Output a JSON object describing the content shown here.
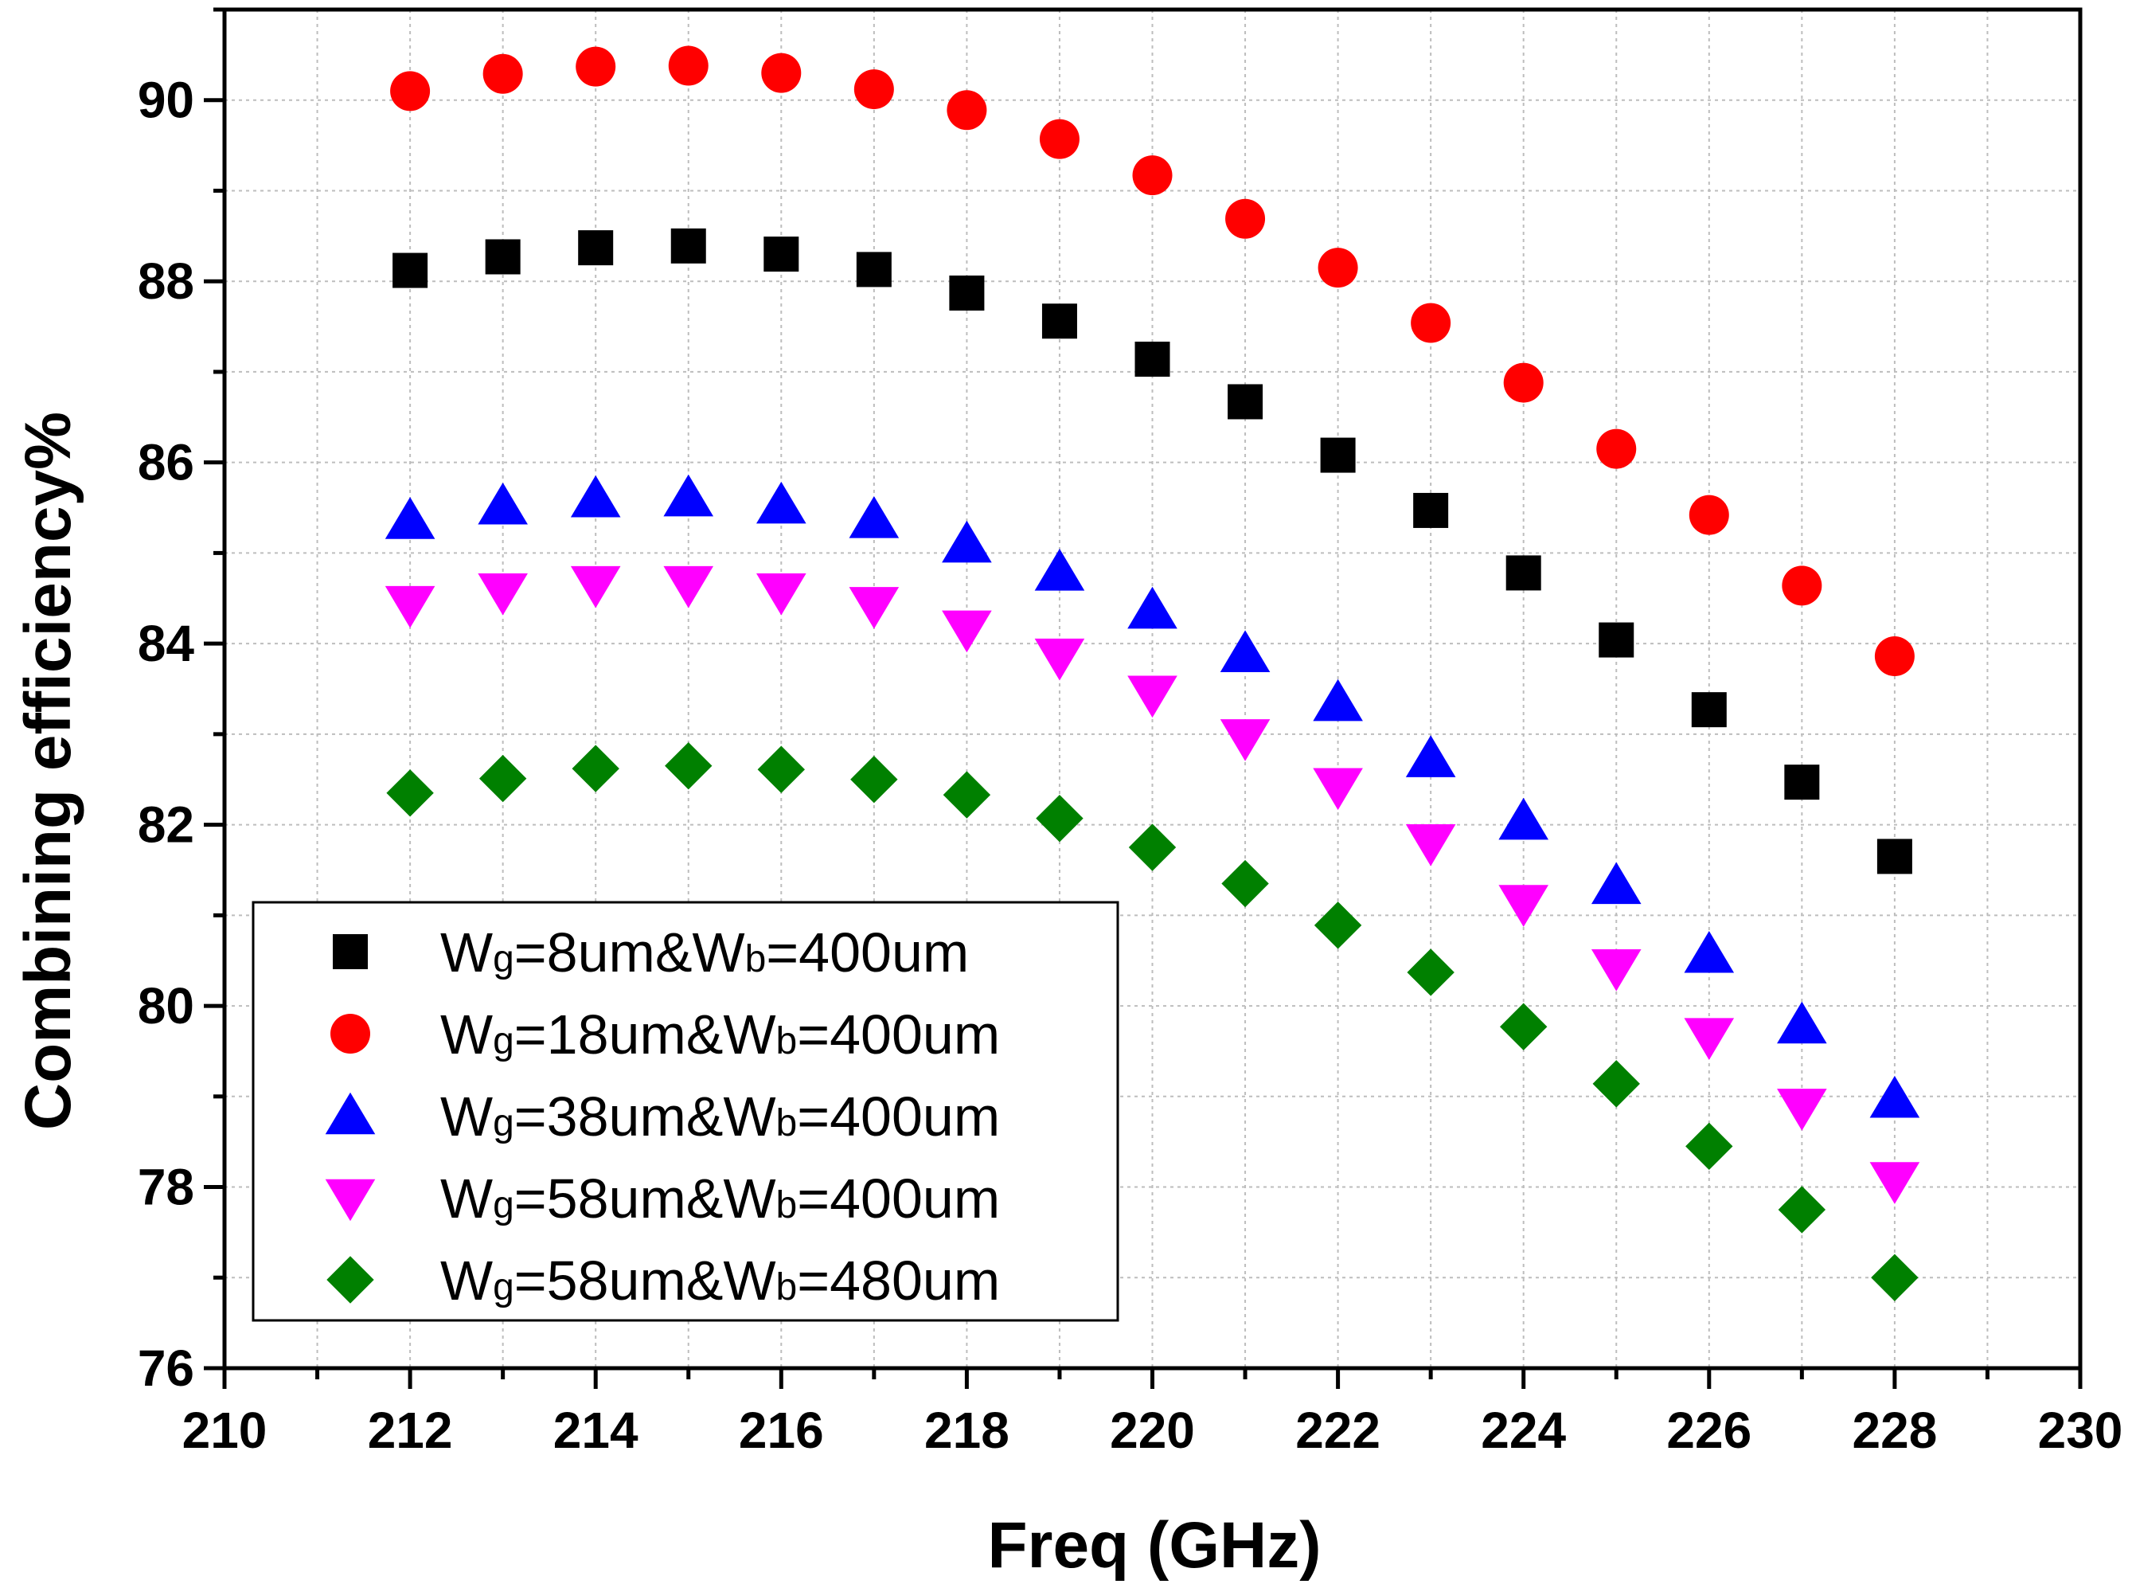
{
  "chart_data": {
    "type": "scatter",
    "xlabel": "Freq (GHz)",
    "ylabel": "Combining efficiency%",
    "xlim": [
      210,
      230
    ],
    "ylim": [
      76,
      91
    ],
    "xticks": [
      210,
      212,
      214,
      216,
      218,
      220,
      222,
      224,
      226,
      228,
      230
    ],
    "yticks": [
      76,
      78,
      80,
      82,
      84,
      86,
      88,
      90
    ],
    "grid": true,
    "legend_position": "bottom-left",
    "x": [
      212,
      213,
      214,
      215,
      216,
      217,
      218,
      219,
      220,
      221,
      222,
      223,
      224,
      225,
      226,
      227,
      228
    ],
    "series": [
      {
        "label": {
          "a": "W",
          "sub1": "g",
          "b": "=8um&W",
          "sub2": "b",
          "c": "=400um"
        },
        "marker": "square",
        "color": "#000000",
        "values": [
          88.12,
          88.27,
          88.37,
          88.39,
          88.3,
          88.13,
          87.87,
          87.56,
          87.14,
          86.67,
          86.08,
          85.47,
          84.78,
          84.04,
          83.27,
          82.47,
          81.65
        ]
      },
      {
        "label": {
          "a": "W",
          "sub1": "g",
          "b": "=18um&W",
          "sub2": "b",
          "c": "=400um"
        },
        "marker": "circle",
        "color": "#ff0000",
        "values": [
          90.1,
          90.29,
          90.37,
          90.38,
          90.3,
          90.12,
          89.89,
          89.57,
          89.17,
          88.69,
          88.15,
          87.54,
          86.88,
          86.15,
          85.42,
          84.64,
          83.86
        ]
      },
      {
        "label": {
          "a": "W",
          "sub1": "g",
          "b": "=38um&W",
          "sub2": "b",
          "c": "=400um"
        },
        "marker": "triangle-up",
        "color": "#0000ff",
        "values": [
          85.36,
          85.52,
          85.6,
          85.61,
          85.53,
          85.37,
          85.1,
          84.79,
          84.37,
          83.89,
          83.35,
          82.73,
          82.04,
          81.33,
          80.57,
          79.79,
          78.97
        ]
      },
      {
        "label": {
          "a": "W",
          "sub1": "g",
          "b": "=58um&W",
          "sub2": "b",
          "c": "=400um"
        },
        "marker": "triangle-down",
        "color": "#ff00ff",
        "values": [
          84.43,
          84.57,
          84.65,
          84.65,
          84.57,
          84.42,
          84.16,
          83.85,
          83.44,
          82.96,
          82.42,
          81.8,
          81.13,
          80.42,
          79.66,
          78.88,
          78.07
        ]
      },
      {
        "label": {
          "a": "W",
          "sub1": "g",
          "b": "=58um&W",
          "sub2": "b",
          "c": "=480um"
        },
        "marker": "diamond",
        "color": "#008000",
        "values": [
          82.35,
          82.51,
          82.62,
          82.65,
          82.61,
          82.5,
          82.33,
          82.07,
          81.75,
          81.35,
          80.89,
          80.37,
          79.77,
          79.14,
          78.45,
          77.75,
          77.0
        ]
      }
    ]
  }
}
